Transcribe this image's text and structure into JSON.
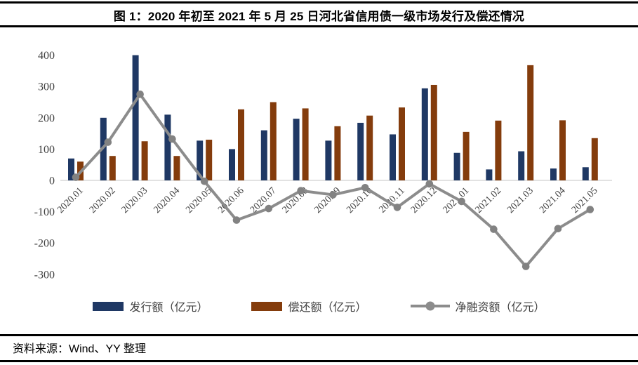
{
  "title": "图 1：2020 年初至 2021 年 5 月 25 日河北省信用债一级市场发行及偿还情况",
  "source": "资料来源：Wind、YY 整理",
  "legend": [
    {
      "label": "发行额（亿元）",
      "type": "bar",
      "color": "#1F3864"
    },
    {
      "label": "偿还额（亿元）",
      "type": "bar",
      "color": "#843C0C"
    },
    {
      "label": "净融资额（亿元）",
      "type": "line",
      "color": "#8C8C8C"
    }
  ],
  "colors": {
    "issuance": "#1F3864",
    "repayment": "#843C0C",
    "net_line": "#8C8C8C",
    "net_dot": "#828282",
    "axis_line": "#D9D9D9",
    "tick_text": "#404040",
    "rule": "#000000"
  },
  "chart_data": {
    "type": "bar",
    "subtype": "grouped bars + line overlay",
    "title": "图 1：2020 年初至 2021 年 5 月 25 日河北省信用债一级市场发行及偿还情况",
    "xlabel": "",
    "ylabel": "",
    "categories": [
      "2020.01",
      "2020.02",
      "2020.03",
      "2020.04",
      "2020.05",
      "2020.06",
      "2020.07",
      "2020.08",
      "2020.09",
      "2020.10",
      "2020.11",
      "2020.12",
      "2021.01",
      "2021.02",
      "2021.03",
      "2021.04",
      "2021.05"
    ],
    "series": [
      {
        "name": "发行额（亿元）",
        "type": "bar",
        "color": "#1F3864",
        "values": [
          70,
          200,
          400,
          210,
          127,
          100,
          160,
          197,
          127,
          184,
          147,
          294,
          88,
          35,
          93,
          38,
          42
        ]
      },
      {
        "name": "偿还额（亿元）",
        "type": "bar",
        "color": "#843C0C",
        "values": [
          60,
          78,
          125,
          78,
          130,
          227,
          250,
          230,
          173,
          207,
          233,
          305,
          155,
          191,
          368,
          192,
          135
        ]
      },
      {
        "name": "净融资额（亿元）",
        "type": "line",
        "color": "#8C8C8C",
        "values": [
          10,
          122,
          275,
          132,
          -3,
          -127,
          -90,
          -33,
          -46,
          -23,
          -86,
          -11,
          -67,
          -156,
          -275,
          -154,
          -93
        ]
      }
    ],
    "ylim": [
      -300,
      400
    ],
    "yticks": [
      400,
      300,
      200,
      100,
      0,
      -100,
      -200,
      -300
    ],
    "grid": false,
    "legend_position": "bottom",
    "x_tick_rotation_deg": 45
  }
}
